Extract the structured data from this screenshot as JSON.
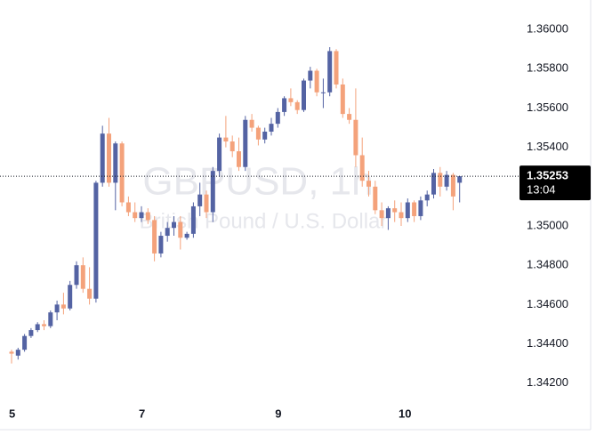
{
  "chart_data": {
    "type": "candlestick",
    "watermark_symbol": "GBPUSD, 1h",
    "watermark_description": "British Pound / U.S. Dollar",
    "up_color": "#5463a3",
    "down_color": "#f4a27b",
    "categories": [
      "5",
      null,
      null,
      null,
      null,
      null,
      null,
      null,
      null,
      null,
      null,
      null,
      null,
      null,
      null,
      null,
      null,
      null,
      null,
      null,
      "7",
      null,
      null,
      null,
      null,
      null,
      null,
      null,
      null,
      null,
      null,
      null,
      null,
      null,
      null,
      null,
      null,
      null,
      null,
      null,
      null,
      "9",
      null,
      null,
      null,
      null,
      null,
      null,
      null,
      null,
      null,
      null,
      null,
      null,
      null,
      null,
      null,
      null,
      null,
      null,
      "10",
      null,
      null,
      null,
      null,
      null,
      null,
      null,
      null,
      null
    ],
    "open": [
      1.3436,
      1.3434,
      1.3437,
      1.3444,
      1.3447,
      1.345,
      1.3449,
      1.3456,
      1.346,
      1.3458,
      1.347,
      1.348,
      1.3468,
      1.3463,
      1.3522,
      1.3547,
      1.3522,
      1.3542,
      1.3512,
      1.3507,
      1.3504,
      1.3507,
      1.3503,
      1.3486,
      1.3495,
      1.3499,
      1.3502,
      1.3494,
      1.3496,
      1.351,
      1.3516,
      1.3507,
      1.3528,
      1.3545,
      1.3543,
      1.3538,
      1.353,
      1.3554,
      1.355,
      1.3544,
      1.3548,
      1.3552,
      1.3558,
      1.3565,
      1.3563,
      1.3559,
      1.3574,
      1.3579,
      1.3568,
      1.3568,
      1.3589,
      1.3572,
      1.3557,
      1.3554,
      1.3536,
      1.3523,
      1.352,
      1.3508,
      1.3504,
      1.3509,
      1.3507,
      1.3504,
      1.3512,
      1.3505,
      1.3513,
      1.3516,
      1.3527,
      1.352,
      1.3526,
      1.3522
    ],
    "high": [
      1.3437,
      1.3438,
      1.3445,
      1.3448,
      1.3451,
      1.3452,
      1.3457,
      1.3462,
      1.3466,
      1.3472,
      1.3482,
      1.3484,
      1.3479,
      1.3523,
      1.3551,
      1.3555,
      1.3543,
      1.3543,
      1.3515,
      1.3512,
      1.351,
      1.3509,
      1.3505,
      1.3497,
      1.3502,
      1.3505,
      1.3505,
      1.3497,
      1.3512,
      1.3522,
      1.3518,
      1.353,
      1.3547,
      1.3556,
      1.3546,
      1.3545,
      1.3556,
      1.3557,
      1.3551,
      1.355,
      1.3555,
      1.356,
      1.3566,
      1.357,
      1.3564,
      1.3575,
      1.3581,
      1.358,
      1.3575,
      1.3591,
      1.359,
      1.3575,
      1.356,
      1.357,
      1.3545,
      1.3528,
      1.3523,
      1.3512,
      1.351,
      1.3513,
      1.3512,
      1.3514,
      1.3513,
      1.3515,
      1.3518,
      1.3529,
      1.353,
      1.3528,
      1.3527,
      1.3524
    ],
    "low": [
      1.343,
      1.3432,
      1.3436,
      1.3443,
      1.3446,
      1.3447,
      1.3448,
      1.3452,
      1.3455,
      1.3457,
      1.3468,
      1.3466,
      1.346,
      1.3461,
      1.352,
      1.352,
      1.3508,
      1.351,
      1.3505,
      1.3502,
      1.3502,
      1.3501,
      1.3482,
      1.3484,
      1.3492,
      1.3495,
      1.3488,
      1.3493,
      1.3494,
      1.3505,
      1.3504,
      1.3502,
      1.3525,
      1.354,
      1.3535,
      1.3528,
      1.3528,
      1.3548,
      1.3541,
      1.3542,
      1.3546,
      1.355,
      1.3556,
      1.3561,
      1.3557,
      1.3558,
      1.357,
      1.3566,
      1.356,
      1.3566,
      1.357,
      1.3555,
      1.3552,
      1.353,
      1.352,
      1.3515,
      1.3506,
      1.35,
      1.3498,
      1.3502,
      1.35,
      1.3502,
      1.3502,
      1.3503,
      1.351,
      1.3514,
      1.3515,
      1.3518,
      1.3508,
      1.3512
    ],
    "close": [
      1.3435,
      1.3437,
      1.3444,
      1.3447,
      1.345,
      1.3449,
      1.3456,
      1.346,
      1.3458,
      1.347,
      1.348,
      1.3468,
      1.3463,
      1.3522,
      1.3547,
      1.3522,
      1.3542,
      1.3512,
      1.3507,
      1.3504,
      1.3507,
      1.3503,
      1.3486,
      1.3495,
      1.3499,
      1.3502,
      1.3494,
      1.3496,
      1.351,
      1.3516,
      1.3507,
      1.3528,
      1.3545,
      1.3543,
      1.3538,
      1.353,
      1.3554,
      1.355,
      1.3544,
      1.3548,
      1.3552,
      1.3558,
      1.3565,
      1.3563,
      1.3559,
      1.3574,
      1.3579,
      1.3568,
      1.3568,
      1.3589,
      1.3572,
      1.3557,
      1.3554,
      1.3536,
      1.3523,
      1.352,
      1.3508,
      1.3504,
      1.3509,
      1.3507,
      1.3504,
      1.3512,
      1.3505,
      1.3513,
      1.3516,
      1.3527,
      1.352,
      1.3526,
      1.3515,
      1.35253
    ],
    "ylim": [
      1.3409,
      1.3615
    ],
    "yticks": [
      {
        "value": 1.342,
        "label": "1.34200"
      },
      {
        "value": 1.344,
        "label": "1.34400"
      },
      {
        "value": 1.346,
        "label": "1.34600"
      },
      {
        "value": 1.348,
        "label": "1.34800"
      },
      {
        "value": 1.35,
        "label": "1.35000"
      },
      {
        "value": 1.352,
        "label": "1.35200"
      },
      {
        "value": 1.354,
        "label": "1.35400"
      },
      {
        "value": 1.356,
        "label": "1.35600"
      },
      {
        "value": 1.358,
        "label": "1.35800"
      },
      {
        "value": 1.36,
        "label": "1.36000"
      }
    ],
    "last_price": 1.35253,
    "countdown": "13:04"
  }
}
